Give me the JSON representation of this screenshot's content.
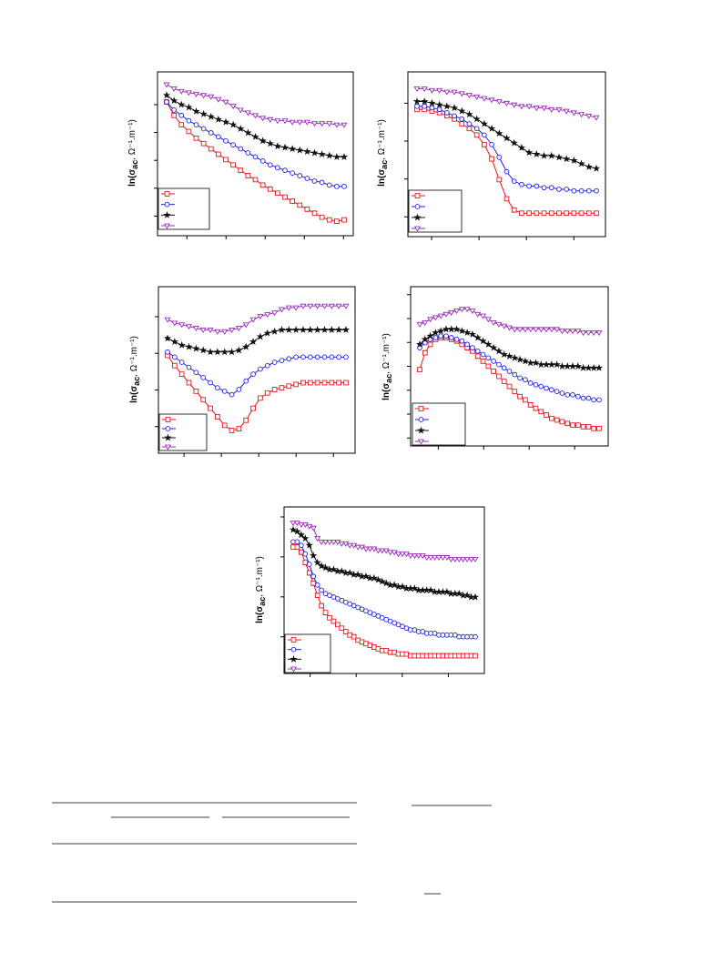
{
  "chart_data": [
    {
      "type": "line",
      "ylabel_main": "ln(σ",
      "ylabel_sub": "ac",
      "ylabel_units": ", Ω⁻¹.m⁻¹)",
      "legend_position": "bottom-left",
      "colors": [
        "#e8141b",
        "#1f1fe8",
        "#111111",
        "#9a2fb8"
      ],
      "markers": [
        "square",
        "circle",
        "star",
        "triangle-down"
      ],
      "x": [
        0,
        1,
        2,
        3,
        4,
        5,
        6,
        7,
        8,
        9,
        10,
        11,
        12,
        13,
        14,
        15,
        16,
        17,
        18,
        19,
        20,
        21,
        22,
        23,
        24
      ],
      "series": [
        {
          "values": [
            0.93,
            0.83,
            0.76,
            0.71,
            0.66,
            0.62,
            0.58,
            0.54,
            0.5,
            0.46,
            0.42,
            0.38,
            0.35,
            0.31,
            0.28,
            0.25,
            0.22,
            0.19,
            0.16,
            0.13,
            0.1,
            0.07,
            0.05,
            0.04,
            0.05
          ]
        },
        {
          "values": [
            0.93,
            0.87,
            0.83,
            0.79,
            0.76,
            0.73,
            0.7,
            0.67,
            0.64,
            0.61,
            0.58,
            0.55,
            0.52,
            0.49,
            0.46,
            0.44,
            0.42,
            0.4,
            0.38,
            0.36,
            0.34,
            0.33,
            0.31,
            0.3,
            0.3
          ]
        },
        {
          "values": [
            0.98,
            0.94,
            0.91,
            0.89,
            0.86,
            0.84,
            0.82,
            0.8,
            0.78,
            0.76,
            0.73,
            0.7,
            0.67,
            0.64,
            0.62,
            0.6,
            0.59,
            0.58,
            0.57,
            0.56,
            0.55,
            0.54,
            0.53,
            0.52,
            0.52
          ]
        },
        {
          "values": [
            1.06,
            1.03,
            1.01,
            1.0,
            0.99,
            0.98,
            0.97,
            0.95,
            0.93,
            0.9,
            0.87,
            0.85,
            0.83,
            0.81,
            0.8,
            0.79,
            0.79,
            0.78,
            0.78,
            0.78,
            0.77,
            0.77,
            0.77,
            0.76,
            0.76
          ]
        }
      ]
    },
    {
      "type": "line",
      "ylabel_main": "ln(σ",
      "ylabel_sub": "ac",
      "ylabel_units": ", Ω⁻¹.m⁻¹)",
      "legend_position": "bottom-left",
      "colors": [
        "#e8141b",
        "#1f1fe8",
        "#111111",
        "#9a2fb8"
      ],
      "markers": [
        "square",
        "circle",
        "star",
        "triangle-down"
      ],
      "x": [
        0,
        1,
        2,
        3,
        4,
        5,
        6,
        7,
        8,
        9,
        10,
        11,
        12,
        13,
        14,
        15,
        16,
        17,
        18,
        19,
        20,
        21,
        22,
        23,
        24
      ],
      "series": [
        {
          "values": [
            0.89,
            0.89,
            0.88,
            0.87,
            0.85,
            0.83,
            0.8,
            0.77,
            0.73,
            0.67,
            0.58,
            0.45,
            0.33,
            0.26,
            0.24,
            0.24,
            0.24,
            0.24,
            0.24,
            0.24,
            0.24,
            0.24,
            0.24,
            0.24,
            0.24
          ]
        },
        {
          "values": [
            0.91,
            0.91,
            0.9,
            0.89,
            0.87,
            0.85,
            0.83,
            0.8,
            0.77,
            0.73,
            0.67,
            0.59,
            0.5,
            0.44,
            0.42,
            0.41,
            0.41,
            0.4,
            0.4,
            0.39,
            0.39,
            0.38,
            0.38,
            0.38,
            0.38
          ]
        },
        {
          "values": [
            0.94,
            0.94,
            0.93,
            0.92,
            0.91,
            0.9,
            0.88,
            0.86,
            0.83,
            0.8,
            0.77,
            0.74,
            0.71,
            0.68,
            0.65,
            0.62,
            0.61,
            0.6,
            0.6,
            0.59,
            0.58,
            0.57,
            0.55,
            0.53,
            0.52
          ]
        },
        {
          "values": [
            1.02,
            1.02,
            1.01,
            1.01,
            1.0,
            1.0,
            0.99,
            0.98,
            0.97,
            0.96,
            0.95,
            0.94,
            0.93,
            0.92,
            0.91,
            0.91,
            0.9,
            0.9,
            0.89,
            0.89,
            0.88,
            0.87,
            0.86,
            0.85,
            0.84
          ]
        }
      ]
    },
    {
      "type": "line",
      "ylabel_main": "ln(σ",
      "ylabel_sub": "ac",
      "ylabel_units": ", Ω⁻¹.m⁻¹)",
      "legend_position": "bottom-left",
      "colors": [
        "#e8141b",
        "#1f1fe8",
        "#111111",
        "#9a2fb8"
      ],
      "markers": [
        "square",
        "circle",
        "star",
        "triangle-down"
      ],
      "x": [
        0,
        1,
        2,
        3,
        4,
        5,
        6,
        7,
        8,
        9,
        10,
        11,
        12,
        13,
        14,
        15,
        16,
        17,
        18,
        19,
        20,
        21,
        22,
        23,
        24,
        25
      ],
      "series": [
        {
          "values": [
            0.72,
            0.66,
            0.61,
            0.56,
            0.51,
            0.46,
            0.41,
            0.36,
            0.31,
            0.28,
            0.29,
            0.34,
            0.41,
            0.47,
            0.5,
            0.52,
            0.53,
            0.54,
            0.55,
            0.56,
            0.56,
            0.56,
            0.56,
            0.56,
            0.56,
            0.56
          ]
        },
        {
          "values": [
            0.74,
            0.71,
            0.68,
            0.65,
            0.62,
            0.59,
            0.56,
            0.53,
            0.51,
            0.49,
            0.52,
            0.57,
            0.61,
            0.64,
            0.66,
            0.68,
            0.69,
            0.7,
            0.71,
            0.71,
            0.71,
            0.71,
            0.71,
            0.71,
            0.71,
            0.71
          ]
        },
        {
          "values": [
            0.82,
            0.8,
            0.78,
            0.77,
            0.76,
            0.75,
            0.74,
            0.74,
            0.74,
            0.74,
            0.75,
            0.77,
            0.8,
            0.83,
            0.85,
            0.86,
            0.87,
            0.87,
            0.87,
            0.87,
            0.87,
            0.87,
            0.87,
            0.87,
            0.87,
            0.87
          ]
        },
        {
          "values": [
            0.93,
            0.91,
            0.9,
            0.89,
            0.88,
            0.87,
            0.87,
            0.86,
            0.86,
            0.87,
            0.88,
            0.9,
            0.93,
            0.95,
            0.96,
            0.97,
            0.99,
            1.0,
            1.0,
            1.01,
            1.01,
            1.01,
            1.01,
            1.01,
            1.01,
            1.01
          ]
        }
      ]
    },
    {
      "type": "line",
      "ylabel_main": "ln(σ",
      "ylabel_sub": "ac",
      "ylabel_units": ", Ω⁻¹.m⁻¹)",
      "legend_position": "bottom-left",
      "colors": [
        "#e8141b",
        "#1f1fe8",
        "#111111",
        "#9a2fb8"
      ],
      "markers": [
        "square",
        "circle",
        "star",
        "triangle-down"
      ],
      "x": [
        0,
        1,
        2,
        3,
        4,
        5,
        6,
        7,
        8,
        9,
        10,
        11,
        12,
        13,
        14,
        15,
        16,
        17,
        18,
        19,
        20,
        21,
        22,
        23,
        24,
        25,
        26,
        27,
        28,
        29,
        30,
        31,
        32,
        33,
        34
      ],
      "series": [
        {
          "values": [
            0.45,
            0.55,
            0.6,
            0.63,
            0.64,
            0.64,
            0.63,
            0.62,
            0.6,
            0.58,
            0.56,
            0.53,
            0.5,
            0.47,
            0.44,
            0.41,
            0.38,
            0.35,
            0.32,
            0.29,
            0.27,
            0.24,
            0.22,
            0.2,
            0.18,
            0.16,
            0.15,
            0.14,
            0.13,
            0.12,
            0.12,
            0.11,
            0.11,
            0.1,
            0.1
          ]
        },
        {
          "values": [
            0.58,
            0.61,
            0.63,
            0.64,
            0.65,
            0.65,
            0.64,
            0.63,
            0.62,
            0.6,
            0.58,
            0.56,
            0.54,
            0.52,
            0.5,
            0.48,
            0.46,
            0.44,
            0.42,
            0.4,
            0.39,
            0.37,
            0.36,
            0.35,
            0.34,
            0.33,
            0.32,
            0.31,
            0.3,
            0.3,
            0.29,
            0.28,
            0.28,
            0.27,
            0.27
          ]
        },
        {
          "values": [
            0.6,
            0.63,
            0.65,
            0.67,
            0.68,
            0.69,
            0.69,
            0.69,
            0.68,
            0.67,
            0.66,
            0.64,
            0.62,
            0.6,
            0.58,
            0.56,
            0.54,
            0.53,
            0.52,
            0.51,
            0.5,
            0.49,
            0.49,
            0.48,
            0.48,
            0.48,
            0.48,
            0.47,
            0.47,
            0.47,
            0.47,
            0.46,
            0.46,
            0.46,
            0.46
          ]
        },
        {
          "values": [
            0.72,
            0.73,
            0.75,
            0.76,
            0.77,
            0.78,
            0.79,
            0.8,
            0.81,
            0.81,
            0.8,
            0.78,
            0.77,
            0.75,
            0.73,
            0.72,
            0.71,
            0.7,
            0.69,
            0.69,
            0.69,
            0.69,
            0.69,
            0.69,
            0.69,
            0.69,
            0.69,
            0.68,
            0.68,
            0.68,
            0.68,
            0.67,
            0.67,
            0.67,
            0.67
          ]
        }
      ]
    },
    {
      "type": "line",
      "ylabel_main": "ln(σ",
      "ylabel_sub": "ac",
      "ylabel_units": ", Ω⁻¹.m⁻¹)",
      "legend_position": "bottom-left",
      "colors": [
        "#e8141b",
        "#1f1fe8",
        "#111111",
        "#9a2fb8"
      ],
      "markers": [
        "square",
        "circle",
        "star",
        "triangle-down"
      ],
      "x": [
        0,
        1,
        2,
        3,
        4,
        5,
        6,
        7,
        8,
        9,
        10,
        11,
        12,
        13,
        14,
        15,
        16,
        17,
        18,
        19,
        20,
        21,
        22,
        23,
        24,
        25,
        26,
        27,
        28,
        29,
        30,
        31,
        32,
        33,
        34,
        35,
        36,
        37,
        38,
        39,
        40,
        41,
        42,
        43,
        44,
        45
      ],
      "series": [
        {
          "values": [
            0.93,
            0.93,
            0.9,
            0.84,
            0.78,
            0.72,
            0.65,
            0.59,
            0.55,
            0.52,
            0.5,
            0.48,
            0.46,
            0.44,
            0.42,
            0.41,
            0.39,
            0.38,
            0.37,
            0.36,
            0.35,
            0.34,
            0.33,
            0.33,
            0.32,
            0.32,
            0.31,
            0.31,
            0.31,
            0.3,
            0.3,
            0.3,
            0.3,
            0.3,
            0.3,
            0.3,
            0.3,
            0.3,
            0.3,
            0.3,
            0.3,
            0.3,
            0.3,
            0.3,
            0.3,
            0.3
          ]
        },
        {
          "values": [
            0.96,
            0.96,
            0.94,
            0.89,
            0.83,
            0.76,
            0.71,
            0.68,
            0.66,
            0.65,
            0.64,
            0.63,
            0.62,
            0.61,
            0.6,
            0.59,
            0.58,
            0.57,
            0.56,
            0.55,
            0.54,
            0.53,
            0.52,
            0.51,
            0.5,
            0.49,
            0.48,
            0.47,
            0.46,
            0.45,
            0.45,
            0.44,
            0.44,
            0.43,
            0.43,
            0.43,
            0.42,
            0.42,
            0.42,
            0.42,
            0.42,
            0.41,
            0.41,
            0.41,
            0.41,
            0.41
          ]
        },
        {
          "values": [
            1.03,
            1.02,
            1.0,
            0.98,
            0.94,
            0.88,
            0.84,
            0.82,
            0.81,
            0.8,
            0.8,
            0.79,
            0.79,
            0.78,
            0.78,
            0.77,
            0.77,
            0.76,
            0.76,
            0.75,
            0.75,
            0.74,
            0.73,
            0.72,
            0.71,
            0.71,
            0.7,
            0.7,
            0.69,
            0.69,
            0.69,
            0.68,
            0.68,
            0.68,
            0.68,
            0.67,
            0.67,
            0.67,
            0.67,
            0.66,
            0.66,
            0.66,
            0.65,
            0.65,
            0.64,
            0.64
          ]
        },
        {
          "values": [
            1.07,
            1.07,
            1.06,
            1.06,
            1.05,
            1.04,
            0.98,
            0.96,
            0.96,
            0.96,
            0.96,
            0.96,
            0.95,
            0.95,
            0.94,
            0.94,
            0.93,
            0.93,
            0.92,
            0.92,
            0.92,
            0.91,
            0.91,
            0.91,
            0.9,
            0.9,
            0.89,
            0.89,
            0.89,
            0.88,
            0.88,
            0.88,
            0.88,
            0.87,
            0.87,
            0.87,
            0.87,
            0.87,
            0.87,
            0.86,
            0.86,
            0.86,
            0.86,
            0.86,
            0.86,
            0.86
          ]
        }
      ]
    }
  ]
}
